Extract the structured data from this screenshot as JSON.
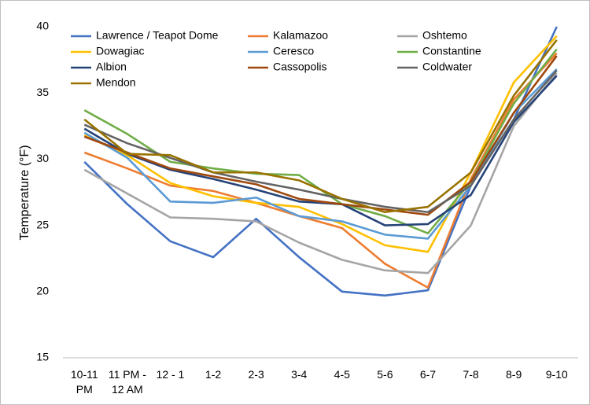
{
  "chart_data": {
    "type": "line",
    "y_label": "Temperature (°F)",
    "categories": [
      "10-11 PM",
      "11 PM - 12 AM",
      "12 - 1",
      "1-2",
      "2-3",
      "3-4",
      "4-5",
      "5-6",
      "6-7",
      "7-8",
      "8-9",
      "9-10"
    ],
    "ylim": [
      15,
      40
    ],
    "yticks": [
      15,
      20,
      25,
      30,
      35,
      40
    ],
    "grid": false,
    "series": [
      {
        "name": "Lawrence / Teapot Dome",
        "color": "#4472c4",
        "values": [
          29.8,
          26.6,
          23.8,
          22.6,
          25.5,
          22.6,
          20.0,
          19.7,
          20.1,
          28.0,
          33.0,
          40.0
        ]
      },
      {
        "name": "Kalamazoo",
        "color": "#ed7d31",
        "values": [
          30.5,
          29.3,
          28.0,
          27.6,
          26.7,
          25.7,
          24.8,
          22.1,
          20.3,
          28.5,
          34.5,
          38.0
        ]
      },
      {
        "name": "Oshtemo",
        "color": "#a5a5a5",
        "values": [
          29.2,
          27.4,
          25.6,
          25.5,
          25.3,
          23.7,
          22.4,
          21.6,
          21.4,
          25.0,
          32.5,
          36.5
        ]
      },
      {
        "name": "Dowagiac",
        "color": "#ffc000",
        "values": [
          31.8,
          30.3,
          28.2,
          27.2,
          26.7,
          26.4,
          25.1,
          23.5,
          23.0,
          29.0,
          35.8,
          39.3
        ]
      },
      {
        "name": "Ceresco",
        "color": "#5b9bd5",
        "values": [
          32.0,
          30.1,
          26.8,
          26.7,
          27.1,
          25.7,
          25.3,
          24.3,
          24.0,
          28.0,
          33.5,
          36.8
        ]
      },
      {
        "name": "Constantine",
        "color": "#70ad47",
        "values": [
          33.7,
          31.9,
          29.8,
          29.3,
          28.9,
          28.8,
          26.6,
          25.7,
          24.4,
          28.3,
          34.2,
          38.3
        ]
      },
      {
        "name": "Albion",
        "color": "#264478",
        "values": [
          32.3,
          30.4,
          29.2,
          28.5,
          27.7,
          26.8,
          26.6,
          25.0,
          25.1,
          27.3,
          32.8,
          36.3
        ]
      },
      {
        "name": "Cassopolis",
        "color": "#9e480e",
        "values": [
          31.7,
          30.5,
          29.3,
          28.7,
          28.1,
          27.0,
          26.6,
          26.2,
          25.8,
          28.3,
          33.5,
          37.8
        ]
      },
      {
        "name": "Coldwater",
        "color": "#636363",
        "values": [
          32.6,
          31.2,
          30.1,
          29.0,
          28.3,
          27.7,
          27.0,
          26.4,
          26.0,
          28.0,
          33.0,
          36.7
        ]
      },
      {
        "name": "Mendon",
        "color": "#997300",
        "values": [
          33.0,
          30.4,
          30.3,
          29.0,
          29.0,
          28.4,
          27.0,
          26.0,
          26.4,
          29.0,
          34.8,
          39.0
        ]
      }
    ]
  }
}
